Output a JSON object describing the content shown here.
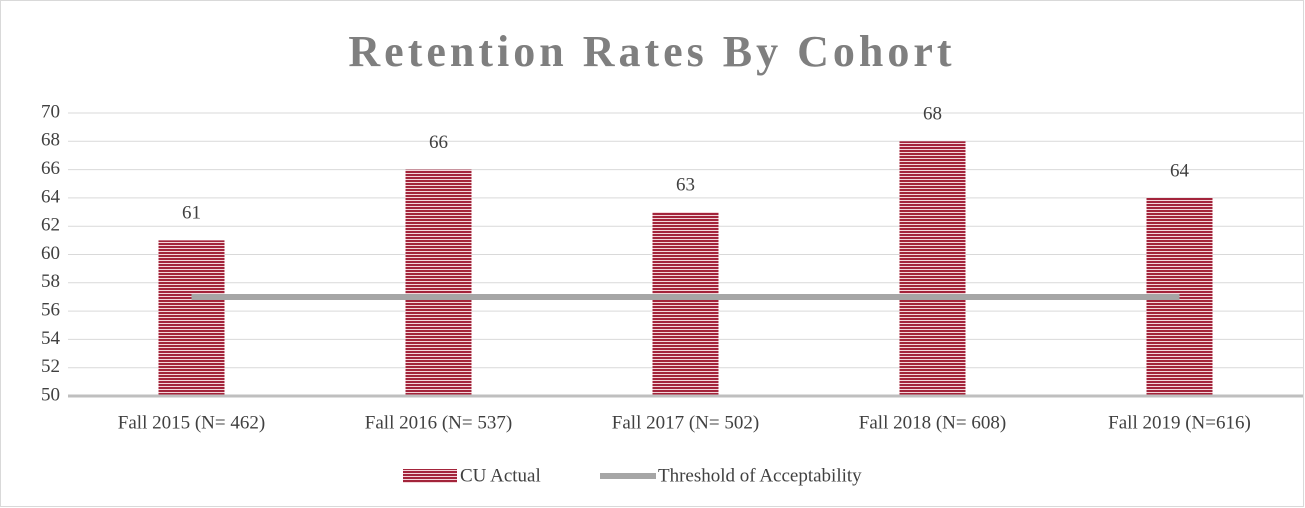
{
  "chart_data": {
    "type": "bar",
    "title": "Retention Rates By Cohort",
    "categories": [
      "Fall 2015 (N= 462)",
      "Fall 2016 (N= 537)",
      "Fall 2017 (N= 502)",
      "Fall 2018 (N= 608)",
      "Fall 2019 (N=616)"
    ],
    "series": [
      {
        "name": "CU Actual",
        "type": "bar",
        "color": "#a3243b",
        "values": [
          61,
          66,
          63,
          68,
          64
        ]
      },
      {
        "name": "Threshold of Acceptability",
        "type": "line",
        "color": "#a6a6a6",
        "values": [
          57,
          57,
          57,
          57,
          57
        ]
      }
    ],
    "ylim": [
      50,
      70
    ],
    "yticks": [
      50,
      52,
      54,
      56,
      58,
      60,
      62,
      64,
      66,
      68,
      70
    ],
    "grid": true,
    "legend": "bottom"
  }
}
